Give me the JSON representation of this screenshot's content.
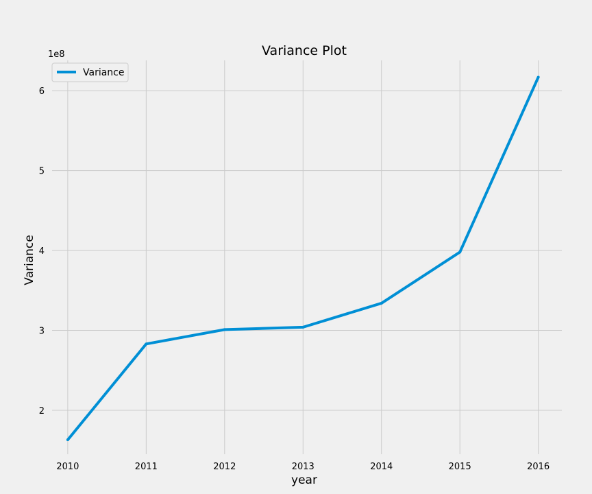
{
  "chart_data": {
    "type": "line",
    "title": "Variance Plot",
    "xlabel": "year",
    "ylabel": "Variance",
    "y_scale_label": "1e8",
    "x": [
      2010,
      2011,
      2012,
      2013,
      2014,
      2015,
      2016
    ],
    "x_tick_labels": [
      "2010",
      "2011",
      "2012",
      "2013",
      "2014",
      "2015",
      "2016"
    ],
    "y_tick_values": [
      2,
      3,
      4,
      5,
      6
    ],
    "y_tick_labels": [
      "2",
      "3",
      "4",
      "5",
      "6"
    ],
    "xlim": [
      2009.8,
      2016.3
    ],
    "ylim": [
      1.45,
      6.38
    ],
    "series": [
      {
        "name": "Variance",
        "color": "#008fd5",
        "values": [
          1.63,
          2.83,
          3.01,
          3.04,
          3.34,
          3.98,
          6.17
        ]
      }
    ],
    "legend_position": "upper-left",
    "grid": true,
    "background_color": "#f0f0f0",
    "grid_color": "#cbcbcb"
  }
}
